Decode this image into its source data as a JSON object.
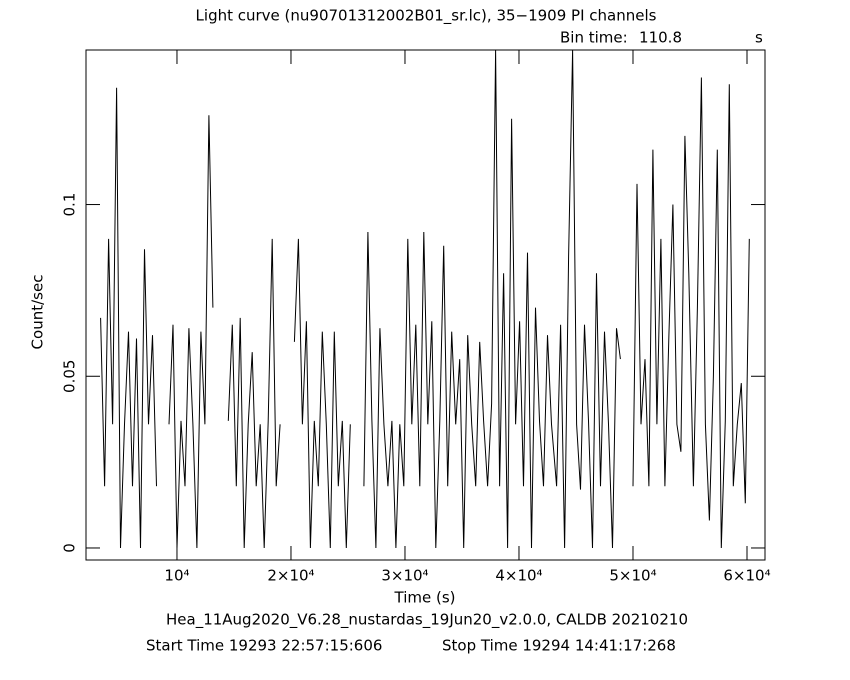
{
  "chart_data": {
    "type": "line",
    "title": "Light curve (nu90701312002B01_sr.lc), 35−1909 PI channels",
    "bin_time_label": "Bin time:",
    "bin_time": "110.8",
    "bin_time_unit": "s",
    "x_label": "Time (s)",
    "y_label": "Count/sec",
    "footer": "Hea_11Aug2020_V6.28_nustardas_19Jun20_v2.0.0, CALDB 20210210",
    "start_time": "Start Time 19293 22:57:15:606",
    "stop_time": "Stop Time 19294 14:41:17:268",
    "xlim": [
      2020,
      61580
    ],
    "ylim": [
      -0.0035,
      0.145
    ],
    "xticks": [
      {
        "value": 10000,
        "label": "10⁴"
      },
      {
        "value": 20000,
        "label": "2×10⁴"
      },
      {
        "value": 30000,
        "label": "3×10⁴"
      },
      {
        "value": 40000,
        "label": "4×10⁴"
      },
      {
        "value": 50000,
        "label": "5×10⁴"
      },
      {
        "value": 60000,
        "label": "6×10⁴"
      }
    ],
    "yticks": [
      0,
      0.05,
      0.1
    ],
    "series": [
      {
        "color": "#000000",
        "x": [
          3300,
          3650,
          4000,
          4350,
          4700,
          5050,
          5400,
          5750,
          6100,
          6450,
          6800,
          7150,
          7500,
          7850,
          8200,
          8700,
          9300,
          9650,
          10000,
          10350,
          10700,
          11050,
          11400,
          11750,
          12100,
          12450,
          12800,
          13150,
          13900,
          14500,
          14850,
          15200,
          15550,
          15900,
          16250,
          16600,
          16950,
          17300,
          17650,
          18000,
          18350,
          18700,
          19050,
          19800,
          20300,
          20650,
          21000,
          21350,
          21700,
          22050,
          22400,
          22750,
          23100,
          23450,
          23800,
          24150,
          24500,
          24850,
          25200,
          25900,
          26400,
          26750,
          27100,
          27450,
          27800,
          28150,
          28500,
          28850,
          29200,
          29550,
          29900,
          30250,
          30600,
          30950,
          31300,
          31650,
          32000,
          32350,
          32700,
          33050,
          33400,
          33750,
          34100,
          34450,
          34800,
          35150,
          35500,
          35850,
          36200,
          36550,
          36900,
          37250,
          37600,
          37950,
          38300,
          38650,
          39000,
          39350,
          39700,
          40050,
          40400,
          40750,
          41100,
          41450,
          41800,
          42150,
          42500,
          42850,
          43300,
          43650,
          44000,
          44350,
          44700,
          45050,
          45400,
          45750,
          46100,
          46450,
          46800,
          47150,
          47500,
          47850,
          48200,
          48550,
          48900,
          49400,
          50000,
          50350,
          50700,
          51050,
          51400,
          51750,
          52100,
          52450,
          52800,
          53150,
          53500,
          53850,
          54200,
          54550,
          54900,
          55300,
          55650,
          56000,
          56350,
          56700,
          57050,
          57400,
          57750,
          58100,
          58450,
          58800,
          59150,
          59500,
          59850,
          60200
        ],
        "values": [
          0.067,
          0.018,
          0.09,
          0.036,
          0.134,
          0,
          0.036,
          0.063,
          0.018,
          0.061,
          0,
          0.087,
          0.036,
          0.062,
          0.018,
          null,
          0.036,
          0.065,
          0,
          0.037,
          0.018,
          0.064,
          0.036,
          0,
          0.063,
          0.036,
          0.126,
          0.07,
          null,
          0.037,
          0.065,
          0.018,
          0.067,
          0,
          0.036,
          0.057,
          0.018,
          0.036,
          0,
          0.037,
          0.09,
          0.018,
          0.036,
          null,
          0.06,
          0.09,
          0.036,
          0.066,
          0,
          0.037,
          0.018,
          0.063,
          0.036,
          0,
          0.063,
          0.018,
          0.037,
          0,
          0.036,
          null,
          0.018,
          0.092,
          0.037,
          0,
          0.064,
          0.036,
          0.018,
          0.037,
          0,
          0.036,
          0.018,
          0.09,
          0.036,
          0.065,
          0.018,
          0.092,
          0.036,
          0.066,
          0,
          0.037,
          0.088,
          0.018,
          0.063,
          0.036,
          0.055,
          0,
          0.062,
          0.036,
          0.018,
          0.06,
          0.037,
          0.018,
          0.042,
          0.145,
          0.018,
          0.08,
          0,
          0.125,
          0.036,
          0.066,
          0.018,
          0.086,
          0,
          0.07,
          0.037,
          0.018,
          0.062,
          0.036,
          0.018,
          0.065,
          0,
          0.085,
          0.145,
          0.036,
          0.017,
          0.065,
          0.037,
          0,
          0.08,
          0.018,
          0.063,
          0.036,
          0,
          0.064,
          0.055,
          null,
          0.018,
          0.106,
          0.036,
          0.055,
          0.018,
          0.116,
          0.036,
          0.09,
          0.018,
          0.062,
          0.1,
          0.036,
          0.028,
          0.12,
          0.08,
          0.018,
          0.07,
          0.137,
          0.036,
          0.008,
          0.05,
          0.116,
          0,
          0.037,
          0.135,
          0.018,
          0.036,
          0.048,
          0.013,
          0.09
        ]
      }
    ]
  }
}
